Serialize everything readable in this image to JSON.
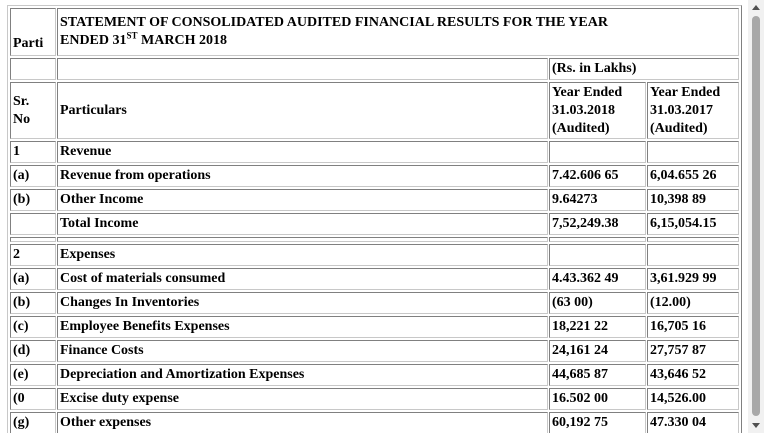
{
  "header": {
    "col1": "Parti",
    "title_line1": "STATEMENT OF CONSOLIDATED AUDITED FINANCIAL RESULTS FOR THE YEAR",
    "title_line2": [
      "ENDED 31",
      "ST",
      "MARCH 2018"
    ]
  },
  "units": "(Rs. in Lakhs)",
  "columns": {
    "sr": [
      "Sr.",
      "No"
    ],
    "particulars": "Particulars",
    "y2018": [
      "Year Ended",
      "31.03.2018",
      "(Audited)"
    ],
    "y2017": [
      "Year Ended",
      "31.03.2017",
      "(Audited)"
    ]
  },
  "rows": [
    {
      "sr": "1",
      "particulars": "Revenue"
    },
    {
      "sr": "(a)",
      "particulars": "Revenue from operations",
      "y2018": "7.42.606 65",
      "y2017": "6,04.655 26"
    },
    {
      "sr": "(b)",
      "particulars": "Other Income",
      "y2018": "9.64273",
      "y2017": "10,398 89"
    },
    {
      "particulars": "Total Income",
      "y2018": "7,52,249.38",
      "y2017": "6,15,054.15"
    },
    {},
    {
      "sr": "2",
      "particulars": "Expenses"
    },
    {
      "sr": "(a)",
      "particulars": "Cost of materials consumed",
      "y2018": "4.43.362 49",
      "y2017": "3,61.929 99"
    },
    {
      "sr": "(b)",
      "particulars": "Changes In Inventories",
      "y2018": "(63 00)",
      "y2017": "(12.00)"
    },
    {
      "sr": "(c)",
      "particulars": "Employee Benefits Expenses",
      "y2018": "18,221 22",
      "y2017": "16,705 16"
    },
    {
      "sr": "(d)",
      "particulars": "Finance Costs",
      "y2018": "24,161 24",
      "y2017": "27,757 87"
    },
    {
      "sr": "(e)",
      "particulars": "Depreciation and Amortization Expenses",
      "y2018": "44,685 87",
      "y2017": "43,646 52"
    },
    {
      "sr": "(0",
      "particulars": "Excise duty expense",
      "y2018": "16.502 00",
      "y2017": "14,526.00"
    },
    {
      "sr": "(g)",
      "particulars": "Other expenses",
      "y2018": "60,192 75",
      "y2017": "47.330 04"
    }
  ]
}
